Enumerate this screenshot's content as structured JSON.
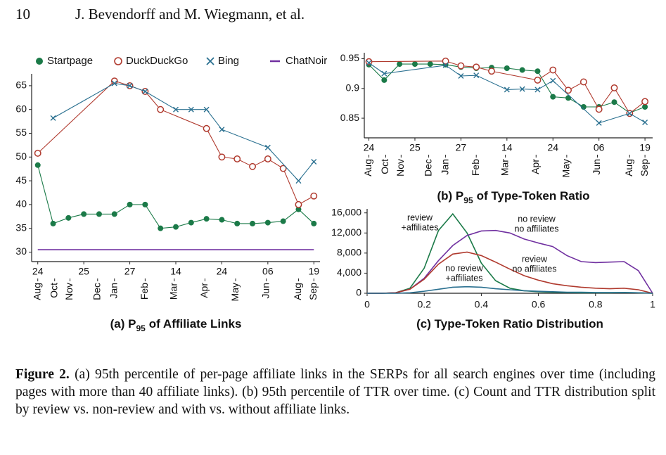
{
  "header": {
    "page_number": "10",
    "authors": "J. Bevendorff and M. Wiegmann, et al."
  },
  "chart_data": [
    {
      "type": "line",
      "title": {
        "prefix": "(a) P",
        "subscript": "95",
        "suffix": "of Affiliate Links"
      },
      "x": [
        0,
        1,
        2,
        3,
        4,
        5,
        6,
        7,
        8,
        9,
        10,
        11,
        12,
        13,
        14,
        15,
        16,
        17,
        18
      ],
      "xlim": [
        -0.4,
        18.4
      ],
      "ylim": [
        28,
        67.5
      ],
      "xticks": [
        {
          "value": 0,
          "label": "24"
        },
        {
          "value": 3,
          "label": "25"
        },
        {
          "value": 6,
          "label": "27"
        },
        {
          "value": 9,
          "label": "14"
        },
        {
          "value": 12,
          "label": "24"
        },
        {
          "value": 15,
          "label": "06"
        },
        {
          "value": 18,
          "label": "19"
        }
      ],
      "month_ticks": [
        {
          "value": 0,
          "label": "Aug"
        },
        {
          "value": 1.1,
          "label": "Oct"
        },
        {
          "value": 2.1,
          "label": "Nov"
        },
        {
          "value": 3.9,
          "label": "Dec"
        },
        {
          "value": 5.0,
          "label": "Jan"
        },
        {
          "value": 7.0,
          "label": "Feb"
        },
        {
          "value": 8.9,
          "label": "Mar"
        },
        {
          "value": 10.9,
          "label": "Apr"
        },
        {
          "value": 12.9,
          "label": "May"
        },
        {
          "value": 14.9,
          "label": "Jun"
        },
        {
          "value": 17.0,
          "label": "Aug"
        },
        {
          "value": 18.0,
          "label": "Sep"
        }
      ],
      "yticks": [
        30,
        35,
        40,
        45,
        50,
        55,
        60,
        65
      ],
      "legend": "top",
      "series": [
        {
          "name": "Startpage",
          "color": "#1b7a48",
          "marker": "circle",
          "values": [
            48.3,
            36,
            37.2,
            38,
            38,
            38,
            40,
            40,
            35,
            35.3,
            36.2,
            37,
            36.8,
            36,
            36,
            36.2,
            36.5,
            39,
            36
          ]
        },
        {
          "name": "DuckDuckGo",
          "color": "#b03a2e",
          "marker": "open-circle",
          "x": [
            0,
            5,
            6,
            7,
            8,
            11,
            12,
            13,
            14,
            15,
            16,
            17,
            18
          ],
          "values": [
            50.8,
            66,
            65,
            63.8,
            60,
            56,
            50,
            49.6,
            48,
            49.6,
            47.6,
            40,
            41.8
          ]
        },
        {
          "name": "Bing",
          "color": "#2a7090",
          "marker": "x",
          "x": [
            1,
            5,
            6,
            7,
            9,
            10,
            11,
            12,
            15,
            17,
            18
          ],
          "values": [
            58.2,
            65.5,
            65,
            63.8,
            60,
            60,
            60,
            55.8,
            52,
            45,
            49
          ]
        },
        {
          "name": "ChatNoir",
          "color": "#7030a0",
          "marker": "none",
          "x": [
            0,
            18
          ],
          "values": [
            30.5,
            30.5
          ]
        }
      ]
    },
    {
      "type": "line",
      "title": {
        "prefix": "(b) P",
        "subscript": "95",
        "suffix": "of Type-Token Ratio"
      },
      "x": [
        0,
        1,
        2,
        3,
        4,
        5,
        6,
        7,
        8,
        9,
        10,
        11,
        12,
        13,
        14,
        15,
        16,
        17,
        18
      ],
      "xlim": [
        -0.3,
        18.5
      ],
      "ylim": [
        0.817,
        0.96
      ],
      "xticks": [
        {
          "value": 0,
          "label": "24"
        },
        {
          "value": 3,
          "label": "25"
        },
        {
          "value": 6,
          "label": "27"
        },
        {
          "value": 9,
          "label": "14"
        },
        {
          "value": 12,
          "label": "24"
        },
        {
          "value": 15,
          "label": "06"
        },
        {
          "value": 18,
          "label": "19"
        }
      ],
      "month_ticks": [
        {
          "value": 0,
          "label": "Aug"
        },
        {
          "value": 1.1,
          "label": "Oct"
        },
        {
          "value": 2.1,
          "label": "Nov"
        },
        {
          "value": 3.9,
          "label": "Dec"
        },
        {
          "value": 5.0,
          "label": "Jan"
        },
        {
          "value": 7.0,
          "label": "Feb"
        },
        {
          "value": 8.9,
          "label": "Mar"
        },
        {
          "value": 10.9,
          "label": "Apr"
        },
        {
          "value": 12.9,
          "label": "May"
        },
        {
          "value": 14.9,
          "label": "Jun"
        },
        {
          "value": 17.0,
          "label": "Aug"
        },
        {
          "value": 18.0,
          "label": "Sep"
        }
      ],
      "yticks": [
        0.85,
        0.9,
        0.95
      ],
      "series": [
        {
          "color": "#1b7a48",
          "marker": "circle",
          "values": [
            0.94,
            0.914,
            0.941,
            0.941,
            0.941,
            0.94,
            0.936,
            0.934,
            0.935,
            0.934,
            0.931,
            0.929,
            0.886,
            0.884,
            0.869,
            0.869,
            0.877,
            0.859,
            0.869
          ]
        },
        {
          "color": "#b03a2e",
          "marker": "open-circle",
          "x": [
            0,
            5,
            6,
            7,
            8,
            11,
            12,
            13,
            14,
            15,
            16,
            17,
            18
          ],
          "values": [
            0.945,
            0.946,
            0.938,
            0.936,
            0.929,
            0.914,
            0.931,
            0.897,
            0.911,
            0.865,
            0.901,
            0.858,
            0.878
          ]
        },
        {
          "color": "#2a7090",
          "marker": "x",
          "x": [
            0,
            1,
            5,
            6,
            7,
            9,
            10,
            11,
            12,
            15,
            17,
            18
          ],
          "values": [
            0.943,
            0.925,
            0.939,
            0.921,
            0.922,
            0.898,
            0.899,
            0.898,
            0.913,
            0.842,
            0.858,
            0.843
          ]
        }
      ]
    },
    {
      "type": "line",
      "title": {
        "prefix": "(c) Type-Token Ratio Distribution"
      },
      "x": [
        0,
        0.05,
        0.1,
        0.15,
        0.2,
        0.25,
        0.3,
        0.35,
        0.4,
        0.45,
        0.5,
        0.55,
        0.6,
        0.65,
        0.7,
        0.75,
        0.8,
        0.85,
        0.9,
        0.95,
        1
      ],
      "xlim": [
        0,
        1
      ],
      "ylim": [
        0,
        16800
      ],
      "xticks": [
        0,
        0.2,
        0.4,
        0.6,
        0.8,
        1
      ],
      "yticks": [
        0,
        {
          "value": 4000,
          "label": "4,000"
        },
        {
          "value": 8000,
          "label": "8,000"
        },
        {
          "value": 12000,
          "label": "12,000"
        },
        {
          "value": 16000,
          "label": "16,000"
        }
      ],
      "series": [
        {
          "name_lines": [
            "review",
            "+affiliates"
          ],
          "color": "#1b7a48",
          "marker": "none",
          "values": [
            0,
            0,
            100,
            1000,
            5000,
            12500,
            15800,
            12000,
            6000,
            2500,
            1000,
            500,
            300,
            200,
            150,
            100,
            100,
            100,
            150,
            100,
            0
          ]
        },
        {
          "name_lines": [
            "no review",
            "no affiliates"
          ],
          "color": "#7030a0",
          "marker": "none",
          "values": [
            0,
            0,
            100,
            800,
            3000,
            6500,
            9500,
            11500,
            12400,
            12500,
            12000,
            10800,
            10000,
            9300,
            7500,
            6300,
            6100,
            6200,
            6300,
            4500,
            0
          ]
        },
        {
          "name_lines": [
            "review",
            "no affiliates"
          ],
          "color": "#b03a2e",
          "marker": "none",
          "values": [
            0,
            0,
            100,
            800,
            2800,
            5800,
            7800,
            8200,
            7500,
            6200,
            4800,
            3500,
            2600,
            1900,
            1500,
            1200,
            1000,
            900,
            1000,
            700,
            0
          ]
        },
        {
          "name_lines": [
            "no review",
            "+affiliates"
          ],
          "color": "#2a7090",
          "marker": "none",
          "values": [
            0,
            0,
            0,
            100,
            400,
            800,
            1200,
            1300,
            1200,
            900,
            700,
            500,
            400,
            300,
            200,
            200,
            150,
            150,
            150,
            100,
            0
          ]
        }
      ]
    }
  ],
  "caption": {
    "label": "Figure 2.",
    "text": "(a) 95th percentile of per-page affiliate links in the SERPs for all search engines over time (including pages with more than 40 affiliate links). (b) 95th percentile of TTR over time. (c) Count and TTR distribution split by review vs. non-review and with vs. without affiliate links."
  }
}
